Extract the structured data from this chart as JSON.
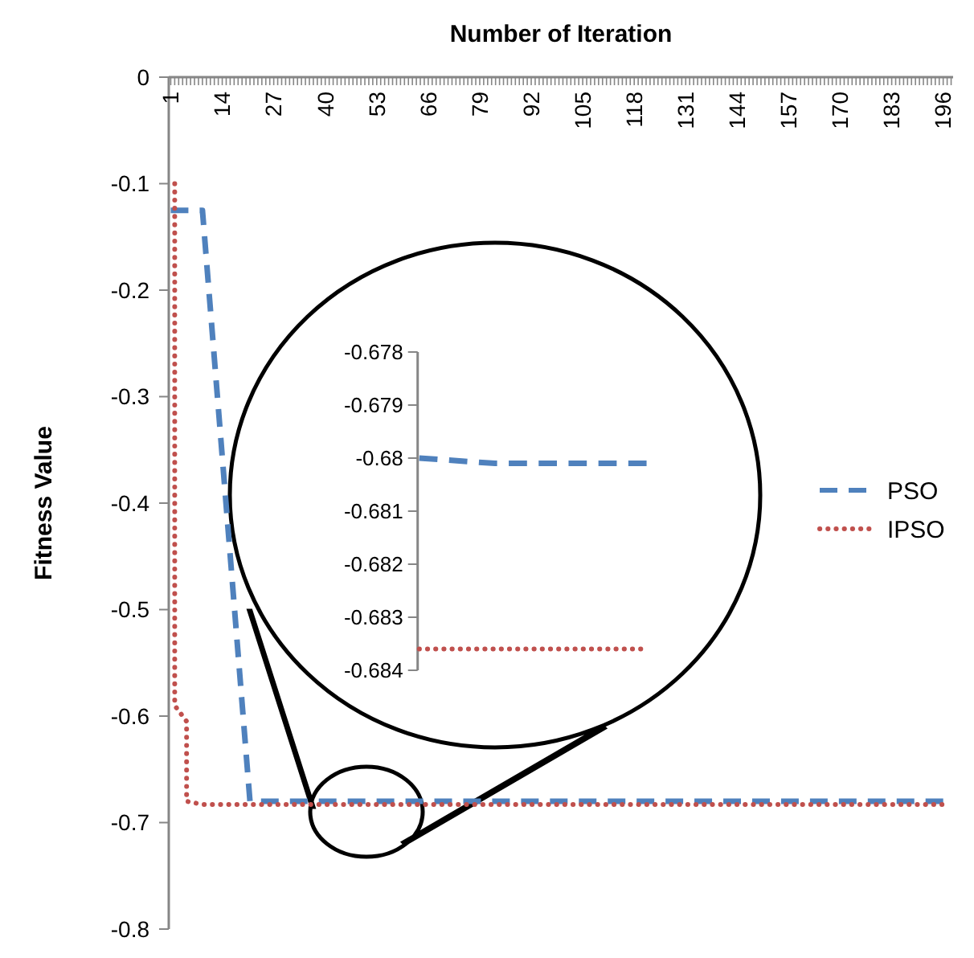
{
  "chart_data": [
    {
      "type": "line",
      "xlabel": "Number of Iteration",
      "ylabel": "Fitness Value",
      "xlim": [
        0.5,
        198.5
      ],
      "ylim": [
        -0.8,
        0
      ],
      "yticks": [
        0,
        -0.1,
        -0.2,
        -0.3,
        -0.4,
        -0.5,
        -0.6,
        -0.7,
        -0.8
      ],
      "xticks": [
        1,
        {
          "value": 2,
          "label": null
        },
        {
          "value": 3,
          "label": null
        },
        {
          "value": 4,
          "label": null
        },
        {
          "value": 5,
          "label": null
        },
        {
          "value": 6,
          "label": null
        },
        {
          "value": 7,
          "label": null
        },
        {
          "value": 8,
          "label": null
        },
        {
          "value": 9,
          "label": null
        },
        {
          "value": 10,
          "label": null
        },
        {
          "value": 11,
          "label": null
        },
        {
          "value": 12,
          "label": null
        },
        {
          "value": 13,
          "label": null
        },
        14,
        {
          "value": 15,
          "label": null
        },
        {
          "value": 16,
          "label": null
        },
        {
          "value": 17,
          "label": null
        },
        {
          "value": 18,
          "label": null
        },
        {
          "value": 19,
          "label": null
        },
        {
          "value": 20,
          "label": null
        },
        {
          "value": 21,
          "label": null
        },
        {
          "value": 22,
          "label": null
        },
        {
          "value": 23,
          "label": null
        },
        {
          "value": 24,
          "label": null
        },
        {
          "value": 25,
          "label": null
        },
        {
          "value": 26,
          "label": null
        },
        27,
        {
          "value": 28,
          "label": null
        },
        {
          "value": 29,
          "label": null
        },
        {
          "value": 30,
          "label": null
        },
        {
          "value": 31,
          "label": null
        },
        {
          "value": 32,
          "label": null
        },
        {
          "value": 33,
          "label": null
        },
        {
          "value": 34,
          "label": null
        },
        {
          "value": 35,
          "label": null
        },
        {
          "value": 36,
          "label": null
        },
        {
          "value": 37,
          "label": null
        },
        {
          "value": 38,
          "label": null
        },
        {
          "value": 39,
          "label": null
        },
        40,
        {
          "value": 41,
          "label": null
        },
        {
          "value": 42,
          "label": null
        },
        {
          "value": 43,
          "label": null
        },
        {
          "value": 44,
          "label": null
        },
        {
          "value": 45,
          "label": null
        },
        {
          "value": 46,
          "label": null
        },
        {
          "value": 47,
          "label": null
        },
        {
          "value": 48,
          "label": null
        },
        {
          "value": 49,
          "label": null
        },
        {
          "value": 50,
          "label": null
        },
        {
          "value": 51,
          "label": null
        },
        {
          "value": 52,
          "label": null
        },
        53,
        {
          "value": 54,
          "label": null
        },
        {
          "value": 55,
          "label": null
        },
        {
          "value": 56,
          "label": null
        },
        {
          "value": 57,
          "label": null
        },
        {
          "value": 58,
          "label": null
        },
        {
          "value": 59,
          "label": null
        },
        {
          "value": 60,
          "label": null
        },
        {
          "value": 61,
          "label": null
        },
        {
          "value": 62,
          "label": null
        },
        {
          "value": 63,
          "label": null
        },
        {
          "value": 64,
          "label": null
        },
        {
          "value": 65,
          "label": null
        },
        66,
        {
          "value": 67,
          "label": null
        },
        {
          "value": 68,
          "label": null
        },
        {
          "value": 69,
          "label": null
        },
        {
          "value": 70,
          "label": null
        },
        {
          "value": 71,
          "label": null
        },
        {
          "value": 72,
          "label": null
        },
        {
          "value": 73,
          "label": null
        },
        {
          "value": 74,
          "label": null
        },
        {
          "value": 75,
          "label": null
        },
        {
          "value": 76,
          "label": null
        },
        {
          "value": 77,
          "label": null
        },
        {
          "value": 78,
          "label": null
        },
        79,
        {
          "value": 80,
          "label": null
        },
        {
          "value": 81,
          "label": null
        },
        {
          "value": 82,
          "label": null
        },
        {
          "value": 83,
          "label": null
        },
        {
          "value": 84,
          "label": null
        },
        {
          "value": 85,
          "label": null
        },
        {
          "value": 86,
          "label": null
        },
        {
          "value": 87,
          "label": null
        },
        {
          "value": 88,
          "label": null
        },
        {
          "value": 89,
          "label": null
        },
        {
          "value": 90,
          "label": null
        },
        {
          "value": 91,
          "label": null
        },
        92,
        {
          "value": 93,
          "label": null
        },
        {
          "value": 94,
          "label": null
        },
        {
          "value": 95,
          "label": null
        },
        {
          "value": 96,
          "label": null
        },
        {
          "value": 97,
          "label": null
        },
        {
          "value": 98,
          "label": null
        },
        {
          "value": 99,
          "label": null
        },
        {
          "value": 100,
          "label": null
        },
        {
          "value": 101,
          "label": null
        },
        {
          "value": 102,
          "label": null
        },
        {
          "value": 103,
          "label": null
        },
        {
          "value": 104,
          "label": null
        },
        105,
        {
          "value": 106,
          "label": null
        },
        {
          "value": 107,
          "label": null
        },
        {
          "value": 108,
          "label": null
        },
        {
          "value": 109,
          "label": null
        },
        {
          "value": 110,
          "label": null
        },
        {
          "value": 111,
          "label": null
        },
        {
          "value": 112,
          "label": null
        },
        {
          "value": 113,
          "label": null
        },
        {
          "value": 114,
          "label": null
        },
        {
          "value": 115,
          "label": null
        },
        {
          "value": 116,
          "label": null
        },
        {
          "value": 117,
          "label": null
        },
        118,
        {
          "value": 119,
          "label": null
        },
        {
          "value": 120,
          "label": null
        },
        {
          "value": 121,
          "label": null
        },
        {
          "value": 122,
          "label": null
        },
        {
          "value": 123,
          "label": null
        },
        {
          "value": 124,
          "label": null
        },
        {
          "value": 125,
          "label": null
        },
        {
          "value": 126,
          "label": null
        },
        {
          "value": 127,
          "label": null
        },
        {
          "value": 128,
          "label": null
        },
        {
          "value": 129,
          "label": null
        },
        {
          "value": 130,
          "label": null
        },
        131,
        {
          "value": 132,
          "label": null
        },
        {
          "value": 133,
          "label": null
        },
        {
          "value": 134,
          "label": null
        },
        {
          "value": 135,
          "label": null
        },
        {
          "value": 136,
          "label": null
        },
        {
          "value": 137,
          "label": null
        },
        {
          "value": 138,
          "label": null
        },
        {
          "value": 139,
          "label": null
        },
        {
          "value": 140,
          "label": null
        },
        {
          "value": 141,
          "label": null
        },
        {
          "value": 142,
          "label": null
        },
        {
          "value": 143,
          "label": null
        },
        144,
        {
          "value": 145,
          "label": null
        },
        {
          "value": 146,
          "label": null
        },
        {
          "value": 147,
          "label": null
        },
        {
          "value": 148,
          "label": null
        },
        {
          "value": 149,
          "label": null
        },
        {
          "value": 150,
          "label": null
        },
        {
          "value": 151,
          "label": null
        },
        {
          "value": 152,
          "label": null
        },
        {
          "value": 153,
          "label": null
        },
        {
          "value": 154,
          "label": null
        },
        {
          "value": 155,
          "label": null
        },
        {
          "value": 156,
          "label": null
        },
        157,
        {
          "value": 158,
          "label": null
        },
        {
          "value": 159,
          "label": null
        },
        {
          "value": 160,
          "label": null
        },
        {
          "value": 161,
          "label": null
        },
        {
          "value": 162,
          "label": null
        },
        {
          "value": 163,
          "label": null
        },
        {
          "value": 164,
          "label": null
        },
        {
          "value": 165,
          "label": null
        },
        {
          "value": 166,
          "label": null
        },
        {
          "value": 167,
          "label": null
        },
        {
          "value": 168,
          "label": null
        },
        {
          "value": 169,
          "label": null
        },
        170,
        {
          "value": 171,
          "label": null
        },
        {
          "value": 172,
          "label": null
        },
        {
          "value": 173,
          "label": null
        },
        {
          "value": 174,
          "label": null
        },
        {
          "value": 175,
          "label": null
        },
        {
          "value": 176,
          "label": null
        },
        {
          "value": 177,
          "label": null
        },
        {
          "value": 178,
          "label": null
        },
        {
          "value": 179,
          "label": null
        },
        {
          "value": 180,
          "label": null
        },
        {
          "value": 181,
          "label": null
        },
        {
          "value": 182,
          "label": null
        },
        183,
        {
          "value": 184,
          "label": null
        },
        {
          "value": 185,
          "label": null
        },
        {
          "value": 186,
          "label": null
        },
        {
          "value": 187,
          "label": null
        },
        {
          "value": 188,
          "label": null
        },
        {
          "value": 189,
          "label": null
        },
        {
          "value": 190,
          "label": null
        },
        {
          "value": 191,
          "label": null
        },
        {
          "value": 192,
          "label": null
        },
        {
          "value": 193,
          "label": null
        },
        {
          "value": 194,
          "label": null
        },
        {
          "value": 195,
          "label": null
        },
        196,
        {
          "value": 197,
          "label": null
        },
        {
          "value": 198,
          "label": null
        }
      ],
      "legend": "right",
      "series": [
        {
          "name": "PSO",
          "color": "#4f81bd",
          "line_style": "dashed",
          "x": [
            1,
            9,
            21,
            196
          ],
          "values": [
            -0.125,
            -0.125,
            -0.68,
            -0.68
          ]
        },
        {
          "name": "IPSO",
          "color": "#c0504d",
          "line_style": "dotted",
          "x": [
            2,
            2,
            5,
            5,
            9,
            196
          ],
          "values": [
            -0.1,
            -0.59,
            -0.605,
            -0.68,
            -0.683,
            -0.683
          ]
        }
      ]
    },
    {
      "type": "line",
      "categories": [
        null,
        null,
        null,
        null,
        null,
        null,
        null
      ],
      "ylim": [
        -0.684,
        -0.678
      ],
      "yticks": [
        -0.678,
        -0.679,
        -0.68,
        -0.681,
        -0.682,
        -0.683,
        -0.684
      ],
      "tick_labels": "y",
      "series": [
        {
          "color": "#4f81bd",
          "line_style": "dashed",
          "values": [
            null,
            null,
            -0.68,
            -0.6801,
            -0.6801,
            -0.6801,
            null
          ]
        },
        {
          "color": "#c0504d",
          "line_style": "dotted",
          "values": [
            null,
            null,
            -0.6836,
            -0.6836,
            -0.6836,
            -0.6836,
            null
          ]
        }
      ]
    }
  ]
}
